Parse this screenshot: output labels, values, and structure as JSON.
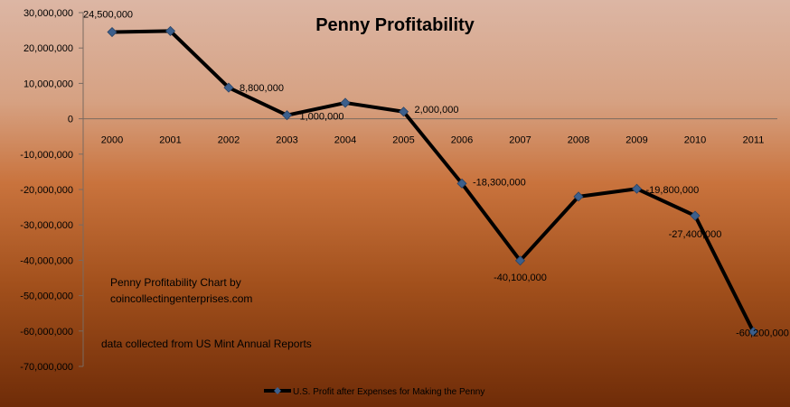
{
  "chart_data": {
    "type": "line",
    "title": "Penny Profitability",
    "categories": [
      "2000",
      "2001",
      "2002",
      "2003",
      "2004",
      "2005",
      "2006",
      "2007",
      "2008",
      "2009",
      "2010",
      "2011"
    ],
    "series": [
      {
        "name": "U.S. Profit after Expenses for Making the Penny",
        "values": [
          24500000,
          24800000,
          8800000,
          1000000,
          4500000,
          2000000,
          -18300000,
          -40100000,
          -22000000,
          -19800000,
          -27400000,
          -60200000
        ],
        "data_labels": [
          "24,500,000",
          "",
          "8,800,000",
          "1,000,000",
          "",
          "2,000,000",
          "-18,300,000",
          "-40,100,000",
          "",
          "-19,800,000",
          "-27,400,000",
          "-60,200,000"
        ],
        "color": "#000000",
        "marker_color": "#3c5f8c"
      }
    ],
    "ylim": [
      -70000000,
      30000000
    ],
    "ytick_step": 10000000,
    "ytick_labels": [
      "30,000,000",
      "20,000,000",
      "10,000,000",
      "0",
      "-10,000,000",
      "-20,000,000",
      "-30,000,000",
      "-40,000,000",
      "-50,000,000",
      "-60,000,000",
      "-70,000,000"
    ],
    "legend_position": "bottom",
    "grid": false,
    "annotations": [
      "Penny Profitability Chart by",
      "coincollectingenterprises.com",
      "data collected from US Mint Annual Reports"
    ]
  }
}
